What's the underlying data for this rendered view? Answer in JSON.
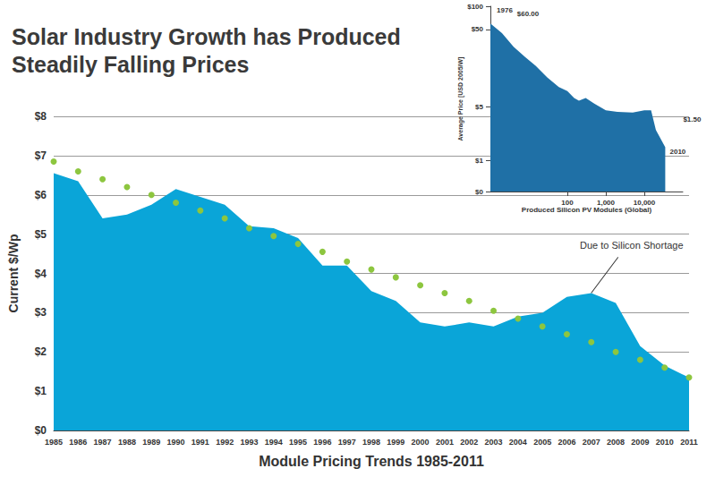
{
  "chart_data": [
    {
      "type": "line",
      "title": "Solar Industry Growth has Produced\nSteadily Falling Prices",
      "x_label": "Module Pricing Trends 1985-2011",
      "y_label": "Current $/Wp",
      "categories": [
        "1985",
        "1986",
        "1987",
        "1988",
        "1989",
        "1990",
        "1991",
        "1992",
        "1993",
        "1994",
        "1995",
        "1996",
        "1997",
        "1998",
        "1999",
        "2000",
        "2001",
        "2002",
        "2003",
        "2004",
        "2005",
        "2006",
        "2007",
        "2008",
        "2009",
        "2010",
        "2011"
      ],
      "series": [
        {
          "type": "area",
          "color": "#0aa5d8",
          "values": [
            6.55,
            6.35,
            5.4,
            5.5,
            5.75,
            6.15,
            5.95,
            5.75,
            5.2,
            5.15,
            4.9,
            4.2,
            4.2,
            3.55,
            3.3,
            2.75,
            2.65,
            2.75,
            2.65,
            2.9,
            3,
            3.4,
            3.5,
            3.25,
            2.15,
            1.65,
            1.35
          ]
        },
        {
          "type": "line",
          "color": "#8dc63f",
          "marker": "circle",
          "line_style": "none",
          "values": [
            6.85,
            6.6,
            6.4,
            6.2,
            6.0,
            5.8,
            5.6,
            5.4,
            5.15,
            4.95,
            4.75,
            4.55,
            4.3,
            4.1,
            3.9,
            3.7,
            3.5,
            3.3,
            3.05,
            2.85,
            2.65,
            2.45,
            2.25,
            2.0,
            1.8,
            1.6,
            1.35
          ]
        }
      ],
      "ylim": [
        0,
        8
      ],
      "yticks": [
        {
          "value": 0,
          "label": "$0"
        },
        {
          "value": 1,
          "label": "$1"
        },
        {
          "value": 2,
          "label": "$2"
        },
        {
          "value": 3,
          "label": "$3"
        },
        {
          "value": 4,
          "label": "$4"
        },
        {
          "value": 5,
          "label": "$5"
        },
        {
          "value": 6,
          "label": "$6"
        },
        {
          "value": 7,
          "label": "$7"
        },
        {
          "value": 8,
          "label": "$8"
        }
      ],
      "grid": true,
      "annotations": [
        {
          "text": "Due to Silicon Shortage",
          "x": "2007",
          "y": 3.5
        }
      ]
    },
    {
      "type": "area",
      "x_label": "Produced Silicon PV Modules (Global)",
      "y_label": "Average Price [USD 2005/W]",
      "x": [
        1,
        2,
        4,
        8,
        15,
        30,
        60,
        100,
        150,
        200,
        300,
        500,
        1000,
        2000,
        5000,
        10000,
        15000,
        20000,
        35000
      ],
      "values": [
        60,
        45,
        30,
        22,
        17,
        12,
        9,
        8,
        6.5,
        6,
        6.5,
        5.5,
        4.5,
        4.3,
        4.2,
        4.5,
        4.5,
        2.5,
        1.5
      ],
      "color": "#1f70a6",
      "log": true,
      "xlim": [
        1,
        100000
      ],
      "xticks": [
        100,
        {
          "value": 1000,
          "label": "1,000"
        },
        {
          "value": 10000,
          "label": "10,000"
        }
      ],
      "ylim": [
        0.4,
        100
      ],
      "yticks": [
        {
          "value": 0.4,
          "label": "$0"
        },
        {
          "value": 1,
          "label": "$1"
        },
        {
          "value": 5,
          "label": "$5"
        },
        {
          "value": 50,
          "label": "$50"
        },
        {
          "value": 100,
          "label": "$100"
        }
      ],
      "grid": false,
      "annotations": [
        {
          "text": "1976",
          "x": 1,
          "y": 60
        },
        {
          "text": "$60.00",
          "x": 1,
          "y": 60
        },
        {
          "text": "$1.50",
          "x": 35000,
          "y": 1.5
        },
        {
          "text": "2010",
          "x": 35000,
          "y": 1.5
        }
      ]
    }
  ]
}
